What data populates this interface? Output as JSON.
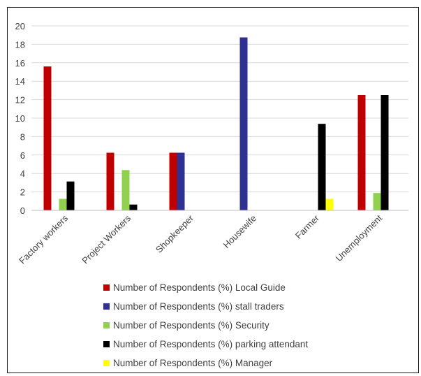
{
  "chart_data": {
    "type": "bar",
    "categories": [
      "Factory workers",
      "Project Workers",
      "Shopkeeper",
      "Housewife",
      "Farmer",
      "Unemployment"
    ],
    "series": [
      {
        "name": "Number of Respondents (%) Local Guide",
        "color": "#c00000",
        "values": [
          15.6,
          6.25,
          6.25,
          0,
          0,
          12.5
        ]
      },
      {
        "name": "Number of Respondents (%) stall traders",
        "color": "#2e3192",
        "values": [
          0,
          0,
          6.25,
          18.75,
          0,
          0
        ]
      },
      {
        "name": "Number of Respondents (%) Security",
        "color": "#92d050",
        "values": [
          1.25,
          4.37,
          0,
          0,
          0,
          1.88
        ]
      },
      {
        "name": "Number of Respondents (%) parking attendant",
        "color": "#000000",
        "values": [
          3.13,
          0.63,
          0,
          0,
          9.38,
          12.5
        ]
      },
      {
        "name": "Number of Respondents (%) Manager",
        "color": "#ffff00",
        "values": [
          0,
          0,
          0,
          0,
          1.25,
          0
        ]
      }
    ],
    "yticks": [
      "0",
      "2",
      "4",
      "6",
      "8",
      "10",
      "12",
      "14",
      "16",
      "18",
      "20"
    ],
    "ylim": [
      0,
      20
    ],
    "grid": true,
    "legend_position": "bottom"
  }
}
